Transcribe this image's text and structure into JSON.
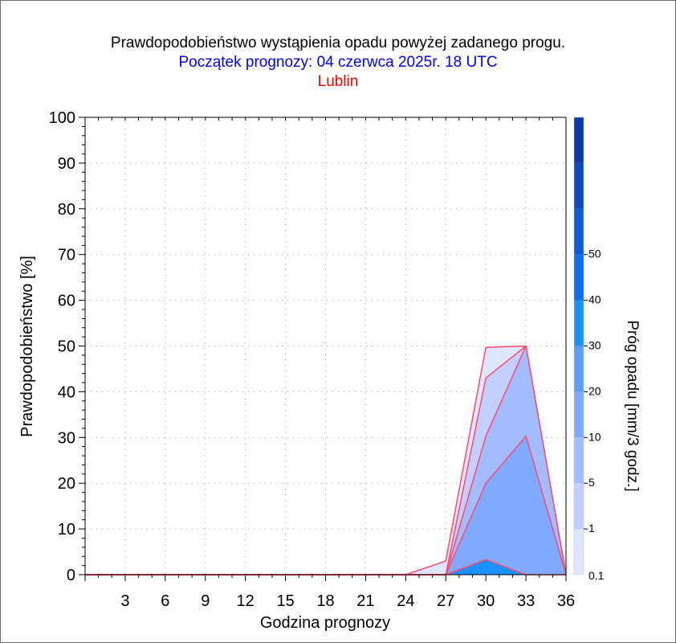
{
  "header": {
    "title": "Prawdopodobieństwo wystąpienia opadu powyżej zadanego progu.",
    "subtitle": "Początek prognozy: 04 czerwca 2025r. 18 UTC",
    "location": "Lublin"
  },
  "colors": {
    "subtitle": "#0000ff",
    "location": "#ff0000",
    "series_outline": "#ff4a6a",
    "scale": [
      "#dfe6ff",
      "#c3d0ff",
      "#a3bbff",
      "#7faaff",
      "#5a9cff",
      "#1c91ff",
      "#0f6cee",
      "#0d5ad6",
      "#0c48c0",
      "#0b37a8"
    ]
  },
  "chart_data": {
    "type": "area",
    "title": "Prawdopodobieństwo wystąpienia opadu powyżej zadanego progu.",
    "xlabel": "Godzina prognozy",
    "ylabel": "Prawdopodobieństwo [%]",
    "xlim": [
      0,
      36
    ],
    "ylim": [
      0,
      100
    ],
    "x_ticks": [
      3,
      6,
      9,
      12,
      15,
      18,
      21,
      24,
      27,
      30,
      33,
      36
    ],
    "y_ticks": [
      0,
      10,
      20,
      30,
      40,
      50,
      60,
      70,
      80,
      90,
      100
    ],
    "grid": true,
    "x": [
      0,
      24,
      27,
      30,
      33,
      36
    ],
    "series": [
      {
        "threshold": 0.1,
        "values": [
          0,
          0,
          3,
          49.7,
          50,
          0
        ]
      },
      {
        "threshold": 1,
        "values": [
          0,
          0,
          0,
          43,
          50,
          0
        ]
      },
      {
        "threshold": 5,
        "values": [
          0,
          0,
          0,
          30.3,
          50,
          0
        ]
      },
      {
        "threshold": 10,
        "values": [
          0,
          0,
          0,
          20,
          30.3,
          0
        ]
      },
      {
        "threshold": 20,
        "values": [
          0,
          0,
          0,
          3.3,
          0,
          0
        ]
      }
    ],
    "colorbar": {
      "label": "Próg opadu [mm/3 godz.]",
      "tick_labels": [
        "0.1",
        "1",
        "5",
        "10",
        "20",
        "30",
        "40",
        "50"
      ],
      "levels": 10
    }
  }
}
